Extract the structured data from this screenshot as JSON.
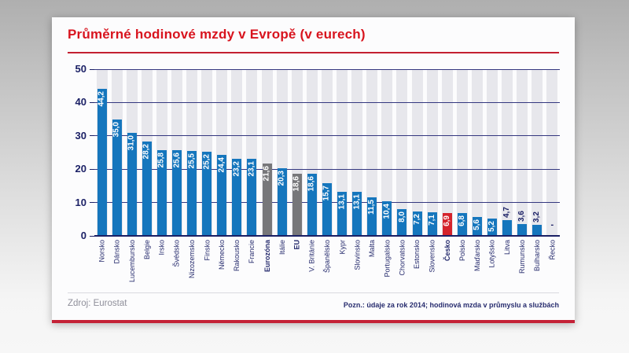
{
  "title": "Průměrné hodinové mzdy v Evropě (v eurech)",
  "footer": {
    "source": "Zdroj: Eurostat",
    "note": "Pozn.: údaje za rok 2014; hodinová mzda v průmyslu a službách"
  },
  "colors": {
    "bar_standard": "#1576bd",
    "bar_aggregate": "#77777a",
    "bar_highlight": "#d5232b",
    "title_red": "#d8141e",
    "navy": "#1c2166",
    "stripe_gray": "#e7e7ec"
  },
  "chart_data": {
    "type": "bar",
    "title": "Průměrné hodinové mzdy v Evropě (v eurech)",
    "xlabel": "",
    "ylabel": "",
    "ylim": [
      0,
      50
    ],
    "yticks": [
      0,
      10,
      20,
      30,
      40,
      50
    ],
    "grid": true,
    "legend": false,
    "categories": [
      "Norsko",
      "Dánsko",
      "Lucembursko",
      "Belgie",
      "Irsko",
      "Švédsko",
      "Nizozemsko",
      "Finsko",
      "Německo",
      "Rakousko",
      "Francie",
      "Eurozóna",
      "Itálie",
      "EU",
      "V. Británie",
      "Španělsko",
      "Kypr",
      "Slovinsko",
      "Malta",
      "Portugalsko",
      "Chorvatsko",
      "Estonsko",
      "Slovensko",
      "Česko",
      "Polsko",
      "Maďarsko",
      "Lotyšsko",
      "Litva",
      "Rumunsko",
      "Bulharsko",
      "Řecko"
    ],
    "values": [
      44.2,
      35.0,
      31.0,
      28.2,
      25.8,
      25.6,
      25.5,
      25.2,
      24.4,
      23.2,
      23.1,
      21.6,
      20.3,
      18.6,
      18.6,
      15.7,
      13.1,
      13.1,
      11.5,
      10.4,
      8.0,
      7.2,
      7.1,
      6.9,
      6.8,
      5.6,
      5.2,
      4.7,
      3.6,
      3.2,
      null
    ],
    "value_labels": [
      "44,2",
      "35,0",
      "31,0",
      "28,2",
      "25,8",
      "25,6",
      "25,5",
      "25,2",
      "24,4",
      "23,2",
      "23,1",
      "21,6",
      "20,3",
      "18,6",
      "18,6",
      "15,7",
      "13,1",
      "13,1",
      "11,5",
      "10,4",
      "8,0",
      "7,2",
      "7,1",
      "6,9",
      "6,8",
      "5,6",
      "5,2",
      "4,7",
      "3,6",
      "3,2",
      "-"
    ],
    "bar_types": [
      "standard",
      "standard",
      "standard",
      "standard",
      "standard",
      "standard",
      "standard",
      "standard",
      "standard",
      "standard",
      "standard",
      "aggregate",
      "standard",
      "aggregate",
      "standard",
      "standard",
      "standard",
      "standard",
      "standard",
      "standard",
      "standard",
      "standard",
      "standard",
      "highlight",
      "standard",
      "standard",
      "standard",
      "standard",
      "standard",
      "standard",
      "standard"
    ]
  }
}
